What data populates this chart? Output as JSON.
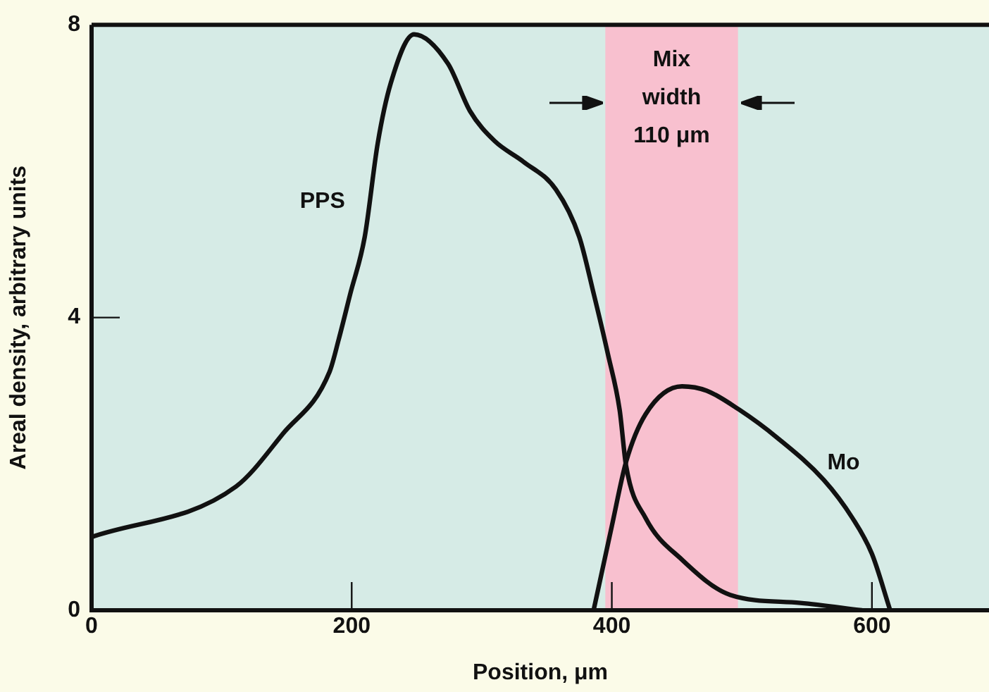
{
  "chart_data": {
    "type": "line",
    "xlabel": "Position, μm",
    "ylabel": "Areal density, arbitrary units",
    "xlim": [
      0,
      690
    ],
    "ylim": [
      0,
      8
    ],
    "xticks": [
      0,
      200,
      400,
      600
    ],
    "yticks": [
      0,
      4,
      8
    ],
    "grid": false,
    "legend": false,
    "marker": "none",
    "line_style": "solid",
    "bands": [
      {
        "axis": "x",
        "from": 395,
        "to": 497,
        "label": "Mix\nwidth\n110 μm",
        "color": "#f8c0cf"
      }
    ],
    "series": [
      {
        "name": "PPS",
        "color": "#111111",
        "x": [
          0,
          111,
          147,
          183,
          190,
          199,
          210,
          220,
          230,
          248,
          274,
          291,
          310,
          332,
          357,
          375,
          386,
          397,
          406,
          411,
          426,
          454,
          491,
          545,
          592
        ],
        "values": [
          1.0,
          1.69,
          2.41,
          3.26,
          3.7,
          4.33,
          5.1,
          6.38,
          7.2,
          7.87,
          7.47,
          6.82,
          6.41,
          6.13,
          5.75,
          5.1,
          4.33,
          3.5,
          2.74,
          1.97,
          1.26,
          0.69,
          0.21,
          0.1,
          0
        ]
      },
      {
        "name": "Mo",
        "color": "#111111",
        "x": [
          386,
          400,
          411,
          426,
          454,
          473,
          498,
          527,
          563,
          585,
          600,
          614
        ],
        "values": [
          0,
          1.15,
          2.03,
          2.68,
          3.06,
          3.0,
          2.74,
          2.36,
          1.78,
          1.26,
          0.77,
          0
        ]
      }
    ]
  }
}
